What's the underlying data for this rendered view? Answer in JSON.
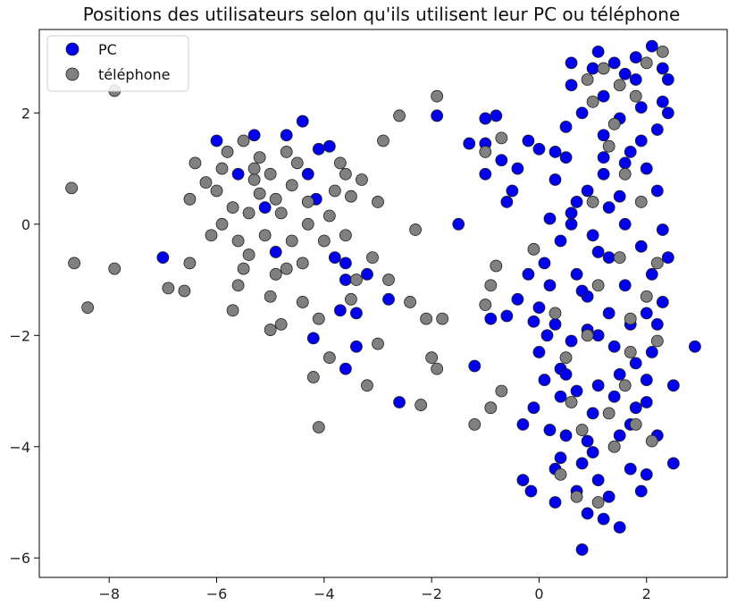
{
  "chart_data": {
    "type": "scatter",
    "title": "Positions des utilisateurs selon qu'ils utilisent leur PC ou téléphone",
    "xlabel": "",
    "ylabel": "",
    "xlim": [
      -9.3,
      3.5
    ],
    "ylim": [
      -6.35,
      3.5
    ],
    "xticks": [
      -8,
      -6,
      -4,
      -2,
      0,
      2
    ],
    "yticks": [
      -6,
      -4,
      -2,
      0,
      2
    ],
    "grid": false,
    "legend_position": "top-left",
    "series": [
      {
        "name": "PC",
        "color": "#0000ee",
        "points": [
          [
            -7.0,
            -0.6
          ],
          [
            -6.0,
            1.5
          ],
          [
            -5.6,
            0.9
          ],
          [
            -5.3,
            1.6
          ],
          [
            -5.1,
            0.3
          ],
          [
            -4.9,
            -0.5
          ],
          [
            -4.7,
            1.6
          ],
          [
            -4.4,
            1.85
          ],
          [
            -4.3,
            0.9
          ],
          [
            -4.15,
            0.45
          ],
          [
            -4.2,
            -2.05
          ],
          [
            -4.1,
            1.35
          ],
          [
            -3.9,
            1.4
          ],
          [
            -3.8,
            -0.6
          ],
          [
            -3.6,
            -0.7
          ],
          [
            -3.6,
            -1.0
          ],
          [
            -3.6,
            -2.6
          ],
          [
            -3.4,
            -2.2
          ],
          [
            -3.2,
            -0.9
          ],
          [
            -3.4,
            -1.6
          ],
          [
            -2.8,
            -1.35
          ],
          [
            -3.7,
            -1.55
          ],
          [
            -2.6,
            -3.2
          ],
          [
            -1.9,
            1.95
          ],
          [
            -1.5,
            0.0
          ],
          [
            -1.3,
            1.45
          ],
          [
            -1.0,
            1.9
          ],
          [
            -1.0,
            1.45
          ],
          [
            -1.0,
            0.9
          ],
          [
            -1.2,
            -2.55
          ],
          [
            -0.8,
            1.95
          ],
          [
            -0.7,
            1.15
          ],
          [
            -0.6,
            0.4
          ],
          [
            -0.5,
            0.6
          ],
          [
            -0.4,
            1.0
          ],
          [
            -0.2,
            1.5
          ],
          [
            0.0,
            1.35
          ],
          [
            -0.9,
            -1.7
          ],
          [
            -0.6,
            -1.65
          ],
          [
            -0.4,
            -1.35
          ],
          [
            -0.2,
            -0.9
          ],
          [
            -0.1,
            -1.75
          ],
          [
            0.0,
            -2.3
          ],
          [
            -0.1,
            -3.3
          ],
          [
            -0.3,
            -3.6
          ],
          [
            -0.3,
            -4.6
          ],
          [
            -0.15,
            -4.8
          ],
          [
            0.2,
            -1.1
          ],
          [
            0.4,
            -0.3
          ],
          [
            0.3,
            0.8
          ],
          [
            0.5,
            1.75
          ],
          [
            0.6,
            0.2
          ],
          [
            0.4,
            -2.6
          ],
          [
            0.8,
            -5.85
          ],
          [
            1.5,
            -5.45
          ],
          [
            0.3,
            -5.0
          ],
          [
            0.9,
            -5.2
          ],
          [
            1.2,
            -5.3
          ],
          [
            2.9,
            -2.2
          ],
          [
            2.5,
            -4.3
          ],
          [
            2.5,
            -2.9
          ],
          [
            2.4,
            2.6
          ],
          [
            2.4,
            2.0
          ],
          [
            2.3,
            -0.1
          ],
          [
            0.3,
            -1.8
          ],
          [
            0.5,
            -3.8
          ],
          [
            0.1,
            -2.8
          ],
          [
            0.7,
            -3.0
          ],
          [
            0.9,
            -1.3
          ],
          [
            1.1,
            -2.0
          ],
          [
            1.3,
            -0.6
          ],
          [
            1.5,
            0.5
          ],
          [
            1.7,
            1.3
          ],
          [
            1.9,
            2.1
          ],
          [
            2.0,
            1.0
          ],
          [
            2.1,
            -0.9
          ],
          [
            2.2,
            -1.8
          ],
          [
            0.6,
            2.5
          ],
          [
            1.0,
            2.8
          ],
          [
            1.4,
            2.9
          ],
          [
            1.8,
            3.0
          ],
          [
            2.1,
            3.2
          ],
          [
            2.3,
            2.8
          ],
          [
            0.8,
            -4.3
          ],
          [
            1.1,
            -4.6
          ],
          [
            1.4,
            -4.0
          ],
          [
            1.7,
            -3.6
          ],
          [
            2.0,
            -3.2
          ],
          [
            2.2,
            -3.8
          ],
          [
            0.7,
            -0.9
          ],
          [
            0.9,
            0.6
          ],
          [
            1.2,
            1.6
          ],
          [
            1.6,
            -1.1
          ],
          [
            1.8,
            -2.5
          ],
          [
            2.0,
            -4.5
          ],
          [
            0.4,
            -4.2
          ],
          [
            0.6,
            -2.1
          ],
          [
            1.0,
            -3.4
          ],
          [
            1.3,
            -1.6
          ],
          [
            1.6,
            0.0
          ],
          [
            1.9,
            -0.4
          ],
          [
            2.2,
            0.6
          ],
          [
            0.5,
            1.2
          ],
          [
            0.8,
            2.0
          ],
          [
            1.2,
            2.3
          ],
          [
            1.5,
            1.9
          ],
          [
            1.8,
            2.6
          ],
          [
            2.2,
            1.7
          ],
          [
            0.9,
            -1.9
          ],
          [
            1.1,
            -2.9
          ],
          [
            1.4,
            -3.1
          ],
          [
            1.7,
            -4.4
          ],
          [
            0.7,
            -4.8
          ],
          [
            1.3,
            -4.9
          ],
          [
            1.9,
            -4.8
          ],
          [
            2.1,
            -2.3
          ],
          [
            2.3,
            -1.4
          ],
          [
            0.6,
            0.0
          ],
          [
            0.7,
            0.4
          ],
          [
            1.0,
            -0.2
          ],
          [
            1.2,
            0.9
          ],
          [
            1.5,
            -2.7
          ],
          [
            1.8,
            -3.3
          ],
          [
            0.4,
            -3.1
          ],
          [
            0.9,
            -3.9
          ],
          [
            1.3,
            0.3
          ],
          [
            1.6,
            1.1
          ],
          [
            2.0,
            -1.6
          ],
          [
            2.4,
            -0.6
          ],
          [
            0.8,
            -1.2
          ],
          [
            1.1,
            -0.5
          ],
          [
            1.4,
            -2.2
          ],
          [
            1.7,
            -1.8
          ],
          [
            0.5,
            -2.7
          ],
          [
            1.0,
            -4.1
          ],
          [
            1.5,
            -3.8
          ],
          [
            2.0,
            -2.8
          ],
          [
            1.2,
            1.2
          ],
          [
            1.9,
            1.5
          ],
          [
            2.3,
            2.2
          ],
          [
            0.6,
            2.9
          ],
          [
            1.1,
            3.1
          ],
          [
            1.6,
            2.7
          ],
          [
            0.3,
            1.3
          ],
          [
            0.2,
            0.1
          ],
          [
            0.1,
            -0.7
          ],
          [
            0.0,
            -1.5
          ],
          [
            0.2,
            -3.7
          ],
          [
            0.3,
            -4.4
          ],
          [
            0.15,
            -2.0
          ]
        ]
      },
      {
        "name": "téléphone",
        "color": "#808080",
        "points": [
          [
            -7.9,
            2.4
          ],
          [
            -8.7,
            0.65
          ],
          [
            -8.65,
            -0.7
          ],
          [
            -8.4,
            -1.5
          ],
          [
            -7.9,
            -0.8
          ],
          [
            -6.9,
            -1.15
          ],
          [
            -6.6,
            -1.2
          ],
          [
            -6.5,
            -0.7
          ],
          [
            -6.5,
            0.45
          ],
          [
            -6.4,
            1.1
          ],
          [
            -6.0,
            0.6
          ],
          [
            -5.9,
            0.0
          ],
          [
            -5.7,
            -1.55
          ],
          [
            -5.6,
            -1.1
          ],
          [
            -5.5,
            -0.8
          ],
          [
            -5.4,
            0.2
          ],
          [
            -5.3,
            0.8
          ],
          [
            -5.2,
            1.2
          ],
          [
            -5.1,
            -0.2
          ],
          [
            -5.0,
            -1.9
          ],
          [
            -4.9,
            0.45
          ],
          [
            -4.8,
            -1.8
          ],
          [
            -4.7,
            -0.8
          ],
          [
            -4.6,
            0.7
          ],
          [
            -4.5,
            1.1
          ],
          [
            -4.4,
            -1.4
          ],
          [
            -4.3,
            0.0
          ],
          [
            -4.2,
            -2.75
          ],
          [
            -4.1,
            -1.7
          ],
          [
            -4.0,
            -0.3
          ],
          [
            -3.9,
            -2.4
          ],
          [
            -3.8,
            0.6
          ],
          [
            -3.7,
            1.1
          ],
          [
            -3.6,
            -0.2
          ],
          [
            -3.5,
            0.5
          ],
          [
            -3.4,
            -1.0
          ],
          [
            -3.3,
            0.8
          ],
          [
            -3.2,
            -2.9
          ],
          [
            -3.1,
            -0.6
          ],
          [
            -3.0,
            0.4
          ],
          [
            -2.9,
            1.5
          ],
          [
            -2.8,
            -1.0
          ],
          [
            -2.6,
            1.95
          ],
          [
            -2.4,
            -1.4
          ],
          [
            -2.3,
            -0.1
          ],
          [
            -2.2,
            -3.25
          ],
          [
            -2.1,
            -1.7
          ],
          [
            -2.0,
            -2.4
          ],
          [
            -1.9,
            -2.6
          ],
          [
            -1.8,
            -1.7
          ],
          [
            -1.9,
            2.3
          ],
          [
            -1.2,
            -3.6
          ],
          [
            -1.0,
            -1.45
          ],
          [
            -0.9,
            -1.1
          ],
          [
            -0.8,
            -0.75
          ],
          [
            -0.9,
            -3.3
          ],
          [
            -0.7,
            -3.0
          ],
          [
            -1.0,
            1.3
          ],
          [
            -0.7,
            1.55
          ],
          [
            -4.1,
            -3.65
          ],
          [
            -3.0,
            -2.15
          ],
          [
            -3.5,
            -1.35
          ],
          [
            -5.8,
            1.3
          ],
          [
            -5.5,
            1.5
          ],
          [
            -5.3,
            1.0
          ],
          [
            -5.0,
            0.9
          ],
          [
            -4.8,
            0.2
          ],
          [
            -4.6,
            -0.3
          ],
          [
            -5.7,
            0.3
          ],
          [
            -5.9,
            1.0
          ],
          [
            -6.2,
            0.75
          ],
          [
            -6.1,
            -0.2
          ],
          [
            -5.4,
            -0.55
          ],
          [
            -4.9,
            -0.9
          ],
          [
            -4.4,
            -0.7
          ],
          [
            -5.2,
            0.55
          ],
          [
            -5.6,
            -0.3
          ],
          [
            -4.7,
            1.3
          ],
          [
            -5.0,
            -1.3
          ],
          [
            -4.3,
            0.4
          ],
          [
            -3.9,
            0.15
          ],
          [
            -3.6,
            0.9
          ],
          [
            -0.1,
            -0.45
          ],
          [
            0.3,
            -1.6
          ],
          [
            0.5,
            -2.4
          ],
          [
            0.8,
            -3.7
          ],
          [
            0.7,
            -4.9
          ],
          [
            1.1,
            -5.0
          ],
          [
            1.4,
            -4.0
          ],
          [
            1.7,
            -2.3
          ],
          [
            2.0,
            -1.3
          ],
          [
            2.2,
            -0.7
          ],
          [
            1.9,
            0.4
          ],
          [
            1.6,
            0.9
          ],
          [
            1.3,
            1.4
          ],
          [
            1.0,
            2.2
          ],
          [
            1.2,
            2.8
          ],
          [
            1.5,
            2.5
          ],
          [
            1.8,
            2.3
          ],
          [
            2.0,
            2.9
          ],
          [
            2.3,
            3.1
          ],
          [
            0.9,
            2.6
          ],
          [
            1.4,
            1.8
          ],
          [
            1.1,
            -1.1
          ],
          [
            1.5,
            -0.6
          ],
          [
            0.6,
            -3.2
          ],
          [
            1.3,
            -3.4
          ],
          [
            2.1,
            -3.9
          ],
          [
            1.6,
            -2.9
          ],
          [
            0.9,
            -2.0
          ],
          [
            0.4,
            -4.5
          ],
          [
            1.8,
            -3.6
          ],
          [
            2.2,
            -2.1
          ],
          [
            1.0,
            0.4
          ],
          [
            1.7,
            -1.7
          ]
        ]
      }
    ]
  }
}
